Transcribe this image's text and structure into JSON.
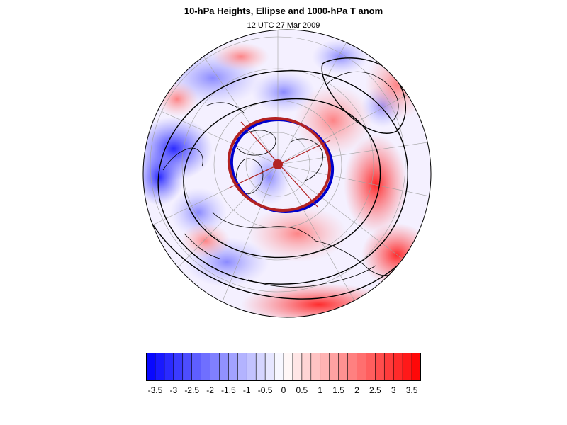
{
  "title": "10-hPa Heights, Ellipse and 1000-hPa T anom",
  "subtitle": "12 UTC 27 Mar 2009",
  "colors": {
    "cold": "#0000ff",
    "warm": "#ff0000",
    "ellipse": "#b22222",
    "ellipse_inner": "#0000cc",
    "contour": "#000000",
    "grid": "#a0a0a0"
  },
  "icons": {
    "ellipse_center": "filled-circle-marker"
  },
  "colorbar": {
    "min": -3.75,
    "max": 3.75,
    "step": 0.25,
    "tick_labels": [
      "-3.5",
      "-3",
      "-2.5",
      "-2",
      "-1.5",
      "-1",
      "-0.5",
      "0",
      "0.5",
      "1",
      "1.5",
      "2",
      "2.5",
      "3",
      "3.5"
    ],
    "tick_values": [
      -3.5,
      -3,
      -2.5,
      -2,
      -1.5,
      -1,
      -0.5,
      0,
      0.5,
      1,
      1.5,
      2,
      2.5,
      3,
      3.5
    ]
  }
}
